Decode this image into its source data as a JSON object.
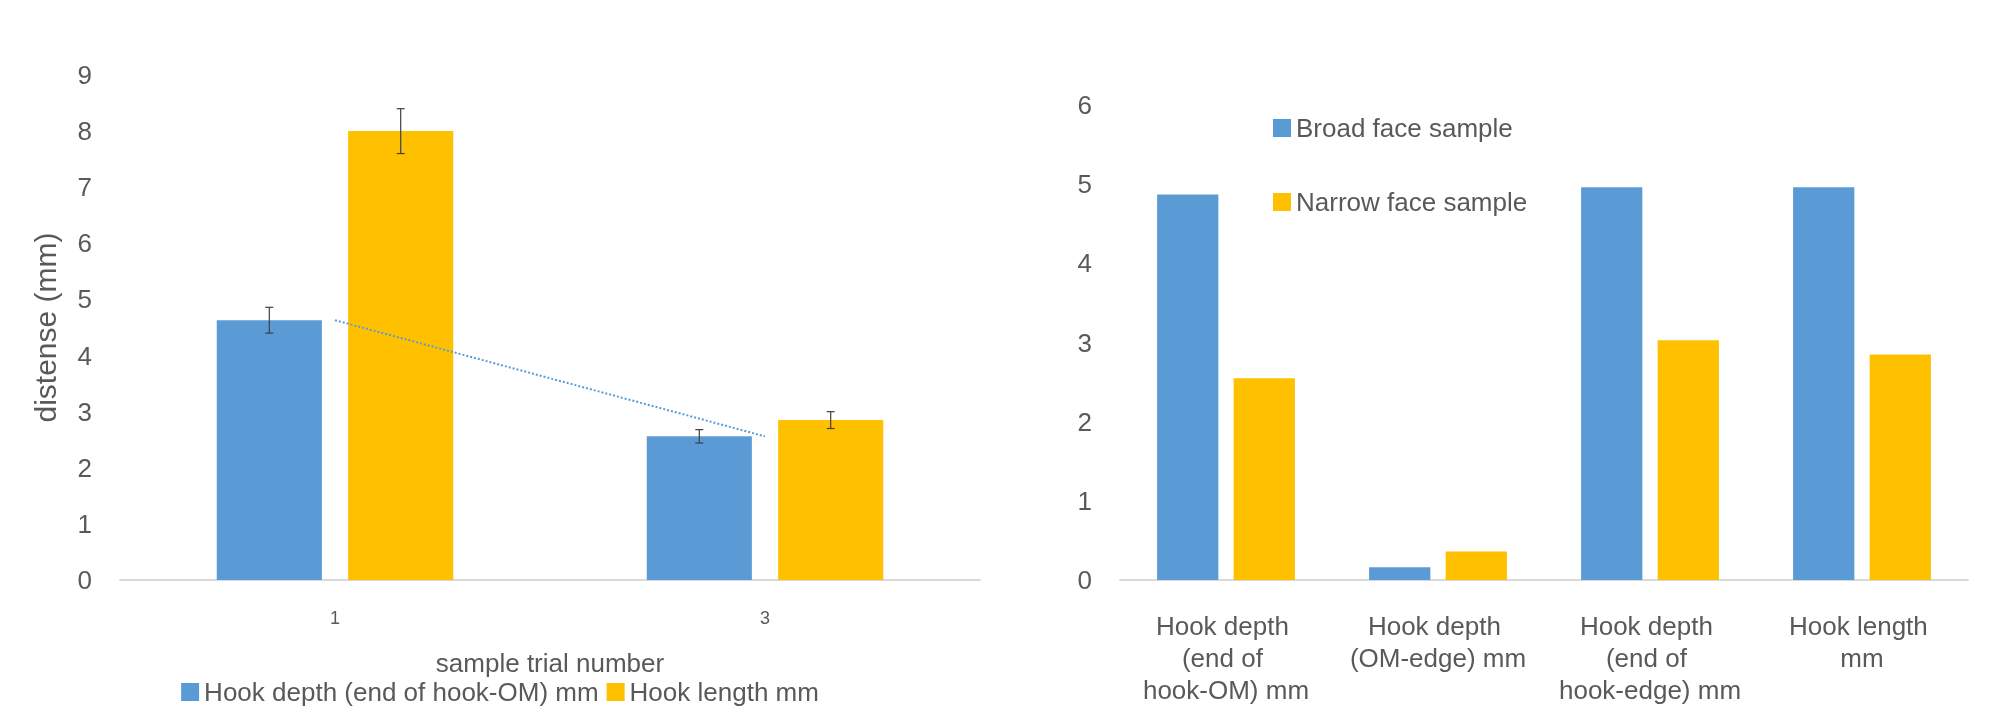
{
  "chart_data": [
    {
      "type": "bar",
      "xlabel": "sample trial number",
      "ylabel": "distense (mm)",
      "categories": [
        "1",
        "3"
      ],
      "series": [
        {
          "name": "Hook depth (end of hook-OM) mm",
          "color": "#5b9bd5",
          "values": [
            4.63,
            2.56
          ],
          "errors": [
            0.23,
            0.12
          ]
        },
        {
          "name": "Hook length mm",
          "color": "#ffc000",
          "values": [
            8.0,
            2.85
          ],
          "errors": [
            0.4,
            0.15
          ]
        },
        {
          "type": "line",
          "color": "#5b9bd5",
          "x": [
            "1",
            "3"
          ],
          "values": [
            4.63,
            2.56
          ],
          "line_style": "dotted",
          "marker": "none"
        }
      ],
      "ylim": [
        0,
        9
      ],
      "yticks": [
        0,
        1,
        2,
        3,
        4,
        5,
        6,
        7,
        8,
        9
      ],
      "grid": false,
      "legend": "bottom"
    },
    {
      "type": "bar",
      "categories": [
        "Hook depth (end of hook-OM) mm",
        "Hook depth (OM-edge) mm",
        "Hook depth (end of hook-edge) mm",
        "Hook length mm"
      ],
      "series": [
        {
          "name": "Broad face sample",
          "color": "#5b9bd5",
          "values": [
            4.87,
            0.16,
            4.96,
            4.96
          ]
        },
        {
          "name": "Narrow face sample",
          "color": "#ffc000",
          "values": [
            2.55,
            0.36,
            3.03,
            2.85
          ]
        }
      ],
      "ylim": [
        0,
        6
      ],
      "yticks": [
        0,
        1,
        2,
        3,
        4,
        5,
        6
      ],
      "grid": false,
      "legend": "top left"
    }
  ]
}
